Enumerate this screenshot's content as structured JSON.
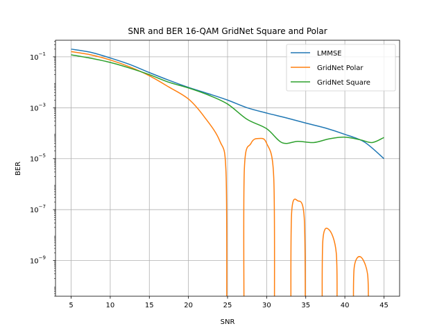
{
  "chart_data": {
    "type": "line",
    "title": "SNR and BER 16-QAM GridNet Square and Polar",
    "xlabel": "SNR",
    "ylabel": "BER",
    "xlim": [
      3,
      47
    ],
    "ylim_log10": [
      -10.4,
      -0.35
    ],
    "yscale": "log",
    "grid": true,
    "legend_position": "top-right",
    "x_ticks": [
      5,
      10,
      15,
      20,
      25,
      30,
      35,
      40,
      45
    ],
    "y_ticks": [
      {
        "exp": -1,
        "base": "10",
        "sup": "−1"
      },
      {
        "exp": -3,
        "base": "10",
        "sup": "−3"
      },
      {
        "exp": -5,
        "base": "10",
        "sup": "−5"
      },
      {
        "exp": -7,
        "base": "10",
        "sup": "−7"
      },
      {
        "exp": -9,
        "base": "10",
        "sup": "−9"
      }
    ],
    "series": [
      {
        "name": "LMMSE",
        "color": "#1f77b4",
        "segments": [
          [
            [
              5,
              0.2
            ],
            [
              7.5,
              0.15
            ],
            [
              10,
              0.09
            ],
            [
              12.5,
              0.05
            ],
            [
              15,
              0.024
            ],
            [
              17.5,
              0.012
            ],
            [
              20,
              0.0063
            ],
            [
              22.5,
              0.0036
            ],
            [
              25,
              0.002
            ],
            [
              27.5,
              0.001
            ],
            [
              30,
              0.00062
            ],
            [
              32.5,
              0.0004
            ],
            [
              35,
              0.00025
            ],
            [
              37.5,
              0.00016
            ],
            [
              40,
              9e-05
            ],
            [
              42.5,
              4.5e-05
            ],
            [
              45,
              1e-05
            ]
          ]
        ]
      },
      {
        "name": "GridNet Polar",
        "color": "#ff7f0e",
        "segments": [
          [
            [
              5,
              0.16
            ],
            [
              7.5,
              0.12
            ],
            [
              10,
              0.075
            ],
            [
              12.5,
              0.04
            ],
            [
              15,
              0.018
            ],
            [
              17.5,
              0.0065
            ],
            [
              20,
              0.0022
            ],
            [
              22,
              0.00045
            ],
            [
              24,
              5e-05
            ],
            [
              24.8,
              3e-06
            ],
            [
              24.9,
              1e-11
            ]
          ],
          [
            [
              27.1,
              1e-11
            ],
            [
              27.15,
              4e-06
            ],
            [
              28,
              4e-05
            ],
            [
              29,
              6.2e-05
            ],
            [
              30,
              4e-05
            ],
            [
              30.9,
              2e-06
            ],
            [
              31.0,
              1e-11
            ]
          ],
          [
            [
              33.1,
              1e-11
            ],
            [
              33.2,
              8e-08
            ],
            [
              34,
              2.2e-07
            ],
            [
              34.8,
              5e-08
            ],
            [
              34.95,
              1e-11
            ]
          ],
          [
            [
              37.1,
              1e-11
            ],
            [
              37.2,
              7e-09
            ],
            [
              38,
              1.6e-08
            ],
            [
              38.9,
              2e-09
            ],
            [
              39.0,
              1e-11
            ]
          ],
          [
            [
              41.1,
              1e-11
            ],
            [
              41.2,
              5.5e-10
            ],
            [
              42,
              1.4e-09
            ],
            [
              42.9,
              3e-10
            ],
            [
              43.0,
              1e-11
            ]
          ]
        ]
      },
      {
        "name": "GridNet Square",
        "color": "#2ca02c",
        "segments": [
          [
            [
              5,
              0.12
            ],
            [
              7.5,
              0.088
            ],
            [
              10,
              0.06
            ],
            [
              12.5,
              0.036
            ],
            [
              15,
              0.02
            ],
            [
              17.5,
              0.01
            ],
            [
              20,
              0.006
            ],
            [
              22.5,
              0.0032
            ],
            [
              25,
              0.0014
            ],
            [
              27.5,
              0.00035
            ],
            [
              30,
              0.00015
            ],
            [
              32,
              4.2e-05
            ],
            [
              34,
              4.8e-05
            ],
            [
              36,
              4.3e-05
            ],
            [
              38,
              6e-05
            ],
            [
              40,
              7e-05
            ],
            [
              42,
              5.5e-05
            ],
            [
              43.5,
              4.3e-05
            ],
            [
              45,
              6.8e-05
            ]
          ]
        ]
      }
    ]
  }
}
